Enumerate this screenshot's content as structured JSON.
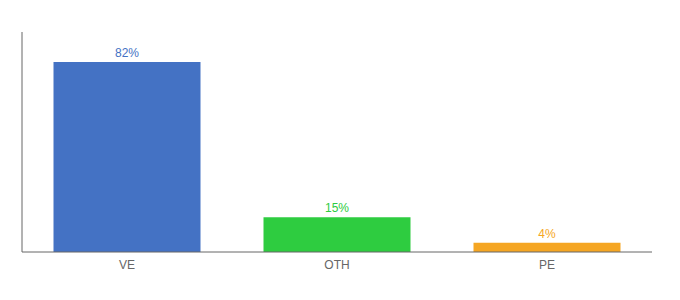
{
  "chart_data": {
    "type": "bar",
    "categories": [
      "VE",
      "OTH",
      "PE"
    ],
    "values": [
      82,
      15,
      4
    ],
    "value_labels": [
      "82%",
      "15%",
      "4%"
    ],
    "colors": [
      "#4472c4",
      "#2ecc40",
      "#f5a623"
    ],
    "ylim": [
      0,
      95
    ],
    "data_labels": true,
    "tick_labels": "x",
    "grid": false
  }
}
